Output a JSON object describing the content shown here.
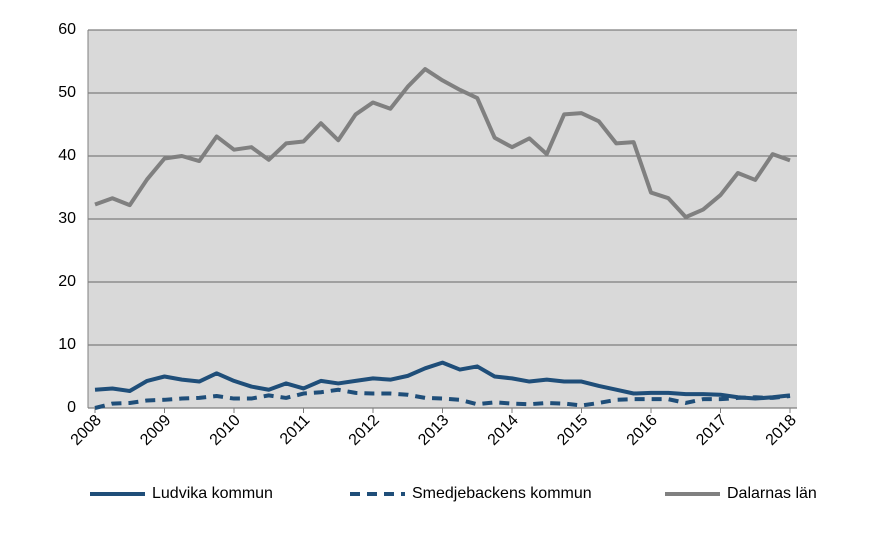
{
  "chart_data": {
    "type": "line",
    "categories": [
      "2008",
      null,
      null,
      null,
      "2009",
      null,
      null,
      null,
      "2010",
      null,
      null,
      null,
      "2011",
      null,
      null,
      null,
      "2012",
      null,
      null,
      null,
      "2013",
      null,
      null,
      null,
      "2014",
      null,
      null,
      null,
      "2015",
      null,
      null,
      null,
      "2016",
      null,
      null,
      null,
      "2017",
      null,
      null,
      null,
      "2018"
    ],
    "series": [
      {
        "name": "Ludvika kommun",
        "color": "#1f4e79",
        "linestyle": "solid",
        "values": [
          2.9,
          3.1,
          2.7,
          4.3,
          5.0,
          4.5,
          4.2,
          5.5,
          4.3,
          3.4,
          2.9,
          3.9,
          3.1,
          4.3,
          3.9,
          4.3,
          4.7,
          4.5,
          5.1,
          6.3,
          7.2,
          6.1,
          6.6,
          5.0,
          4.7,
          4.2,
          4.5,
          4.2,
          4.2,
          3.5,
          2.9,
          2.3,
          2.4,
          2.4,
          2.2,
          2.2,
          2.1,
          1.7,
          1.5,
          1.7,
          2.0
        ]
      },
      {
        "name": "Smedjebackens kommun",
        "color": "#1f4e79",
        "linestyle": "dashed",
        "values": [
          0.0,
          0.7,
          0.8,
          1.2,
          1.3,
          1.5,
          1.6,
          1.9,
          1.5,
          1.5,
          2.0,
          1.6,
          2.3,
          2.5,
          2.9,
          2.4,
          2.3,
          2.3,
          2.1,
          1.6,
          1.5,
          1.3,
          0.6,
          0.9,
          0.7,
          0.6,
          0.8,
          0.7,
          0.4,
          0.8,
          1.3,
          1.4,
          1.4,
          1.4,
          0.8,
          1.4,
          1.4,
          1.6,
          1.7,
          1.6,
          1.9
        ]
      },
      {
        "name": "Dalarnas län",
        "color": "#808080",
        "linestyle": "solid",
        "values": [
          32.3,
          33.3,
          32.2,
          36.3,
          39.6,
          40.0,
          39.2,
          43.1,
          41.0,
          41.4,
          39.4,
          42.0,
          42.3,
          45.2,
          42.5,
          46.6,
          48.5,
          47.5,
          51.0,
          53.8,
          52.0,
          50.5,
          49.2,
          42.9,
          41.4,
          42.8,
          40.3,
          46.6,
          46.8,
          45.5,
          42.0,
          42.2,
          34.2,
          33.3,
          30.3,
          31.5,
          33.8,
          37.3,
          36.2,
          40.3,
          39.3
        ]
      }
    ],
    "ylim": [
      0,
      60
    ],
    "yticks": [
      0,
      10,
      20,
      30,
      40,
      50,
      60
    ],
    "grid": true,
    "legend": "bottom"
  }
}
